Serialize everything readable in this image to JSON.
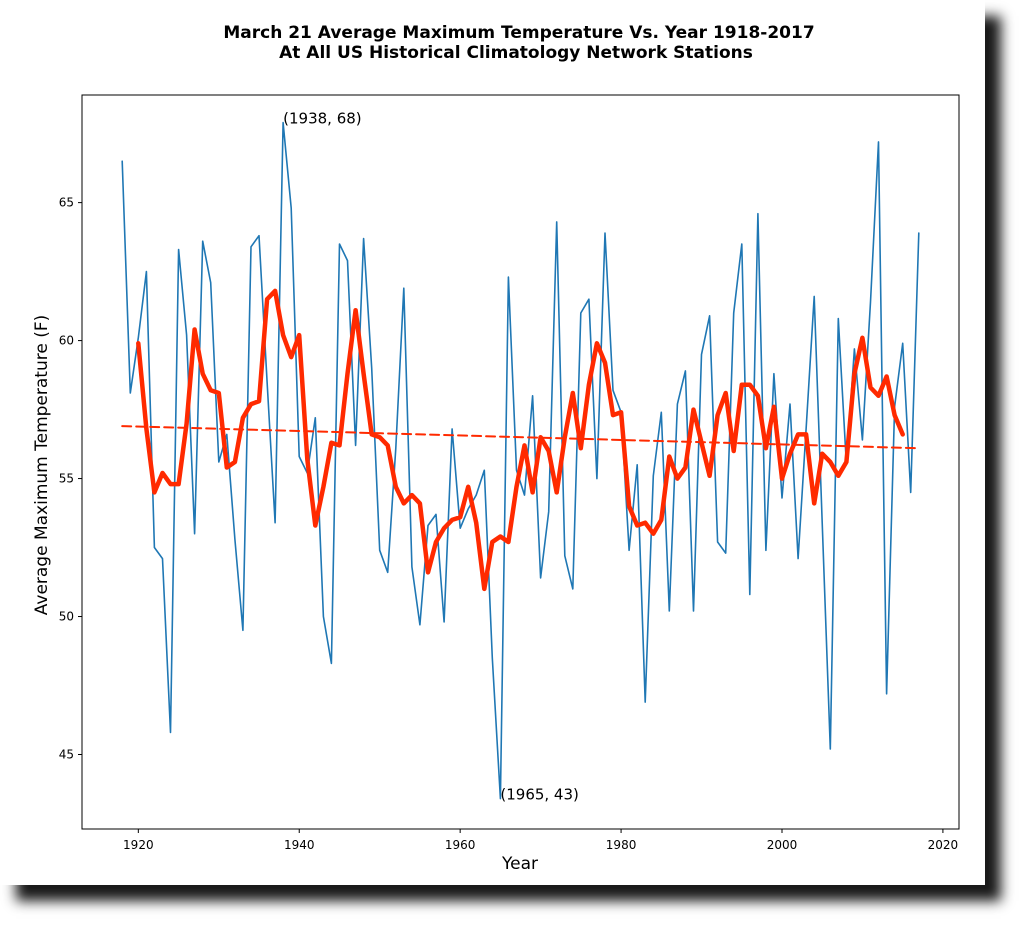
{
  "chart_data": {
    "type": "line",
    "title": "March 21 Average Maximum Temperature Vs. Year 1918-2017",
    "subtitle": "At All US Historical Climatology Network Stations",
    "xlabel": "Year",
    "ylabel": "Average Maximum Temperature (F)",
    "xlim": [
      1913,
      2022
    ],
    "ylim": [
      42.3,
      68.9
    ],
    "xticks": [
      1920,
      1940,
      1960,
      1980,
      2000,
      2020
    ],
    "yticks": [
      45,
      50,
      55,
      60,
      65
    ],
    "grid": false,
    "series": [
      {
        "color": "#1f77b4",
        "x": [
          1918,
          1919,
          1920,
          1921,
          1922,
          1923,
          1924,
          1925,
          1926,
          1927,
          1928,
          1929,
          1930,
          1931,
          1932,
          1933,
          1934,
          1935,
          1936,
          1937,
          1938,
          1939,
          1940,
          1941,
          1942,
          1943,
          1944,
          1945,
          1946,
          1947,
          1948,
          1949,
          1950,
          1951,
          1952,
          1953,
          1954,
          1955,
          1956,
          1957,
          1958,
          1959,
          1960,
          1961,
          1962,
          1963,
          1964,
          1965,
          1966,
          1967,
          1968,
          1969,
          1970,
          1971,
          1972,
          1973,
          1974,
          1975,
          1976,
          1977,
          1978,
          1979,
          1980,
          1981,
          1982,
          1983,
          1984,
          1985,
          1986,
          1987,
          1988,
          1989,
          1990,
          1991,
          1992,
          1993,
          1994,
          1995,
          1996,
          1997,
          1998,
          1999,
          2000,
          2001,
          2002,
          2003,
          2004,
          2005,
          2006,
          2007,
          2008,
          2009,
          2010,
          2011,
          2012,
          2013,
          2014,
          2015,
          2016,
          2017
        ],
        "values": [
          66.5,
          58.1,
          60.1,
          62.5,
          52.5,
          52.1,
          45.8,
          63.3,
          60.2,
          53.0,
          63.6,
          62.1,
          55.6,
          56.6,
          52.8,
          49.5,
          63.4,
          63.8,
          58.5,
          53.4,
          67.9,
          64.8,
          55.8,
          55.2,
          57.2,
          50.0,
          48.3,
          63.5,
          62.9,
          56.2,
          63.7,
          59.0,
          52.4,
          51.6,
          56.1,
          61.9,
          51.8,
          49.7,
          53.3,
          53.7,
          49.8,
          56.8,
          53.2,
          53.9,
          54.4,
          55.3,
          48.5,
          43.4,
          62.3,
          55.3,
          54.4,
          58.0,
          51.4,
          53.8,
          64.3,
          52.2,
          51.0,
          61.0,
          61.5,
          55.0,
          63.9,
          58.2,
          57.4,
          52.4,
          55.5,
          46.9,
          55.1,
          57.4,
          50.2,
          57.7,
          58.9,
          50.2,
          59.5,
          60.9,
          52.7,
          52.3,
          61.0,
          63.5,
          50.8,
          64.6,
          52.4,
          58.8,
          54.3,
          57.7,
          52.1,
          56.8,
          61.6,
          53.4,
          45.2,
          60.8,
          55.5,
          59.7,
          56.4,
          61.4,
          67.2,
          47.2,
          57.6,
          59.9,
          54.5,
          63.9
        ]
      },
      {
        "color": "#ff2a00",
        "x": [
          1920,
          1921,
          1922,
          1923,
          1924,
          1925,
          1926,
          1927,
          1928,
          1929,
          1930,
          1931,
          1932,
          1933,
          1934,
          1935,
          1936,
          1937,
          1938,
          1939,
          1940,
          1941,
          1942,
          1943,
          1944,
          1945,
          1946,
          1947,
          1948,
          1949,
          1950,
          1951,
          1952,
          1953,
          1954,
          1955,
          1956,
          1957,
          1958,
          1959,
          1960,
          1961,
          1962,
          1963,
          1964,
          1965,
          1966,
          1967,
          1968,
          1969,
          1970,
          1971,
          1972,
          1973,
          1974,
          1975,
          1976,
          1977,
          1978,
          1979,
          1980,
          1981,
          1982,
          1983,
          1984,
          1985,
          1986,
          1987,
          1988,
          1989,
          1990,
          1991,
          1992,
          1993,
          1994,
          1995,
          1996,
          1997,
          1998,
          1999,
          2000,
          2001,
          2002,
          2003,
          2004,
          2005,
          2006,
          2007,
          2008,
          2009,
          2010,
          2011,
          2012,
          2013,
          2014,
          2015
        ],
        "values": [
          59.9,
          56.8,
          54.5,
          55.2,
          54.8,
          54.8,
          57.0,
          60.4,
          58.8,
          58.2,
          58.1,
          55.4,
          55.6,
          57.2,
          57.7,
          57.8,
          61.5,
          61.8,
          60.2,
          59.4,
          60.2,
          55.7,
          53.3,
          54.7,
          56.3,
          56.2,
          58.8,
          61.1,
          58.8,
          56.6,
          56.5,
          56.2,
          54.7,
          54.1,
          54.4,
          54.1,
          51.6,
          52.7,
          53.2,
          53.5,
          53.6,
          54.7,
          53.4,
          51.0,
          52.7,
          52.9,
          52.7,
          54.7,
          56.2,
          54.5,
          56.5,
          56.0,
          54.5,
          56.5,
          58.1,
          56.1,
          58.4,
          59.9,
          59.2,
          57.3,
          57.4,
          54.0,
          53.3,
          53.4,
          53.0,
          53.5,
          55.8,
          55.0,
          55.4,
          57.5,
          56.3,
          55.1,
          57.3,
          58.1,
          56.0,
          58.4,
          58.4,
          58.0,
          56.1,
          57.6,
          55.0,
          55.9,
          56.6,
          56.6,
          54.1,
          55.9,
          55.6,
          55.1,
          55.6,
          58.8,
          60.1,
          58.3,
          58.0,
          58.7,
          57.3,
          56.6
        ]
      },
      {
        "color": "#ff2a00",
        "x": [
          1918,
          2017
        ],
        "values": [
          56.9,
          56.1
        ]
      }
    ],
    "annotations": [
      {
        "text": "(1938, 68)",
        "x": 1938,
        "y": 67.9
      },
      {
        "text": "(1965, 43)",
        "x": 1965,
        "y": 43.4
      }
    ]
  }
}
